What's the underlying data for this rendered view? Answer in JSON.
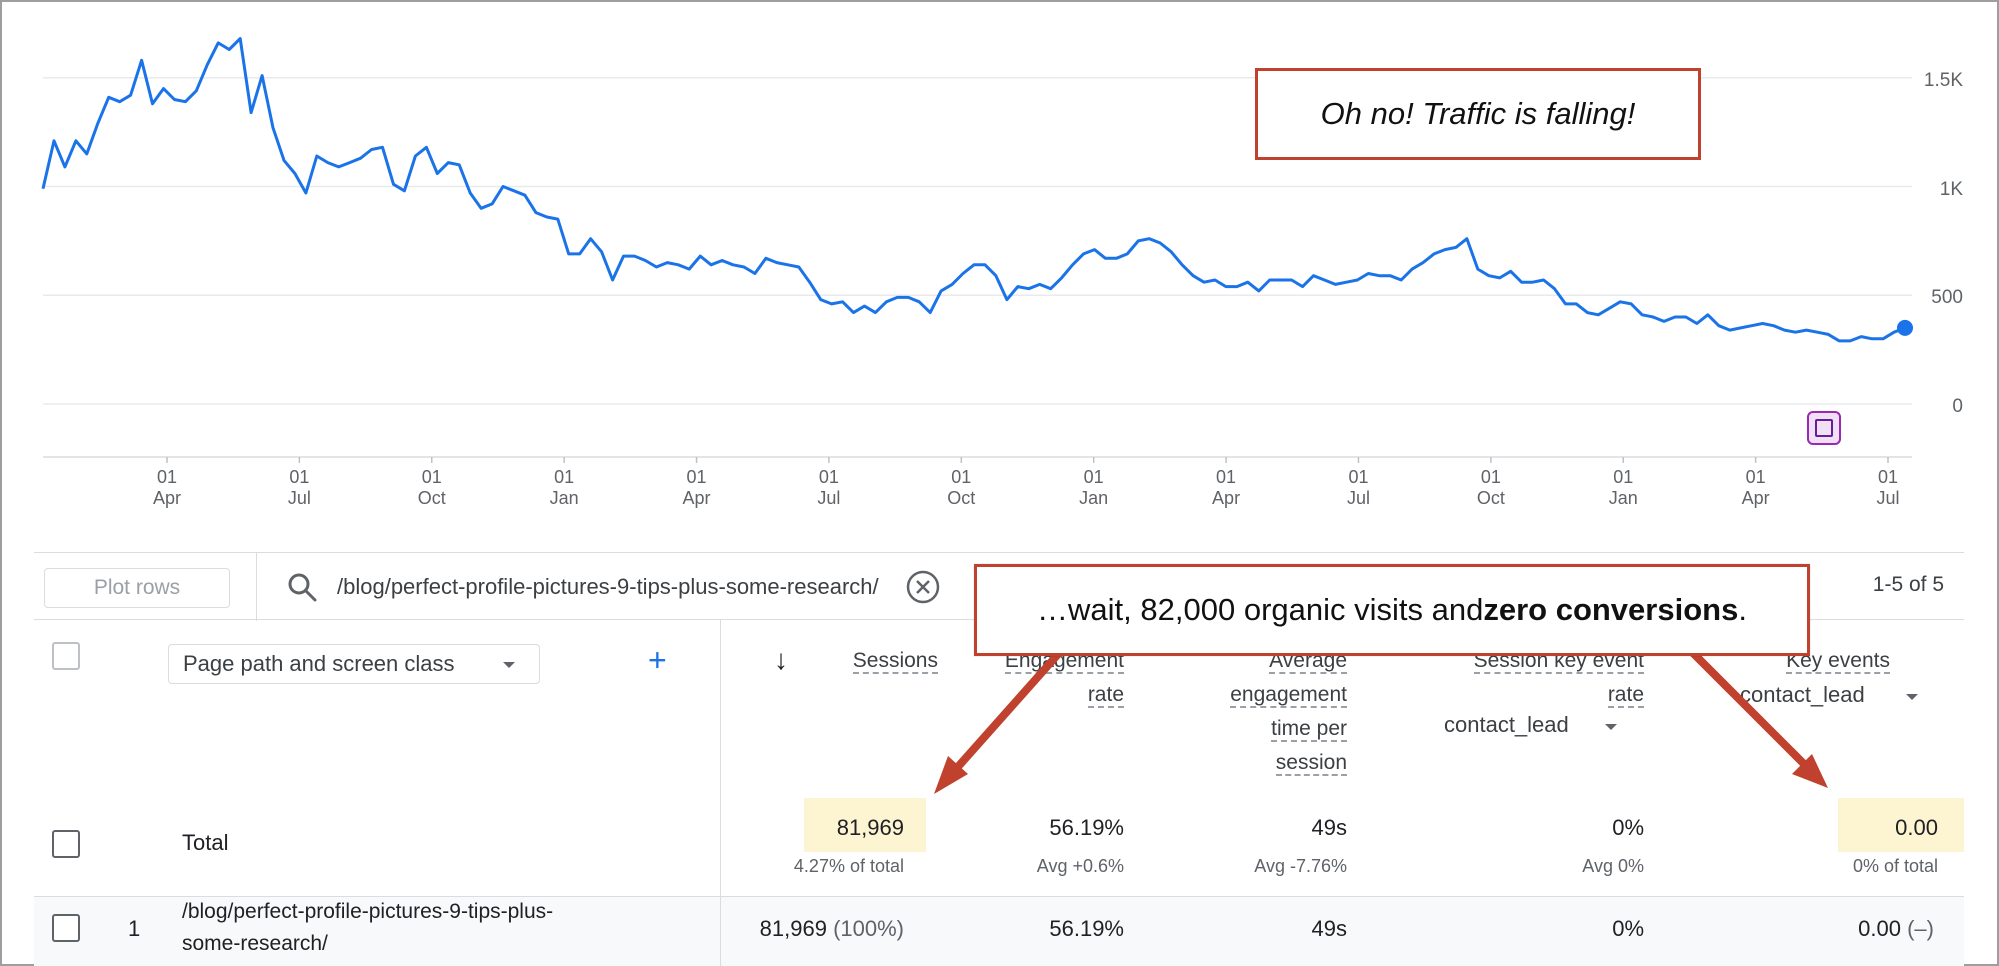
{
  "chart_data": {
    "type": "line",
    "y_ticks": [
      "1.5K",
      "1K",
      "500",
      "0"
    ],
    "ylim": [
      0,
      1600
    ],
    "x_ticks": [
      {
        "day": "01",
        "month": "Apr"
      },
      {
        "day": "01",
        "month": "Jul"
      },
      {
        "day": "01",
        "month": "Oct"
      },
      {
        "day": "01",
        "month": "Jan"
      },
      {
        "day": "01",
        "month": "Apr"
      },
      {
        "day": "01",
        "month": "Jul"
      },
      {
        "day": "01",
        "month": "Oct"
      },
      {
        "day": "01",
        "month": "Jan"
      },
      {
        "day": "01",
        "month": "Apr"
      },
      {
        "day": "01",
        "month": "Jul"
      },
      {
        "day": "01",
        "month": "Oct"
      },
      {
        "day": "01",
        "month": "Jan"
      },
      {
        "day": "01",
        "month": "Apr"
      },
      {
        "day": "01",
        "month": "Jul"
      }
    ],
    "series": [
      {
        "color": "#1a73e8",
        "values": [
          990,
          1210,
          1090,
          1210,
          1150,
          1290,
          1410,
          1390,
          1420,
          1580,
          1380,
          1450,
          1400,
          1390,
          1440,
          1560,
          1660,
          1630,
          1680,
          1340,
          1510,
          1270,
          1120,
          1060,
          970,
          1140,
          1110,
          1090,
          1110,
          1130,
          1170,
          1180,
          1010,
          980,
          1140,
          1180,
          1060,
          1110,
          1100,
          970,
          900,
          920,
          1000,
          980,
          960,
          880,
          860,
          850,
          690,
          690,
          760,
          700,
          570,
          680,
          680,
          660,
          630,
          650,
          640,
          620,
          680,
          640,
          660,
          640,
          630,
          600,
          670,
          650,
          640,
          630,
          560,
          480,
          460,
          470,
          420,
          450,
          420,
          470,
          490,
          490,
          470,
          420,
          520,
          550,
          600,
          640,
          640,
          590,
          480,
          540,
          530,
          550,
          530,
          580,
          640,
          690,
          710,
          670,
          670,
          690,
          750,
          760,
          740,
          700,
          640,
          590,
          560,
          570,
          540,
          540,
          560,
          520,
          570,
          570,
          570,
          540,
          590,
          570,
          550,
          560,
          570,
          600,
          590,
          590,
          570,
          620,
          650,
          690,
          710,
          720,
          760,
          620,
          590,
          580,
          610,
          560,
          560,
          570,
          530,
          460,
          460,
          420,
          410,
          440,
          470,
          460,
          410,
          400,
          380,
          400,
          400,
          370,
          410,
          360,
          340,
          350,
          360,
          370,
          360,
          340,
          330,
          340,
          330,
          320,
          290,
          290,
          310,
          300,
          300,
          330,
          350
        ],
        "last_point_marker": true
      }
    ]
  },
  "callouts": {
    "top": "Oh no! Traffic is falling!",
    "middle_prefix": "…wait, 82,000 organic visits and ",
    "middle_bold": "zero conversions",
    "middle_suffix": "."
  },
  "toolbar": {
    "plot_rows_label": "Plot rows",
    "search_value": "/blog/perfect-profile-pictures-9-tips-plus-some-research/",
    "pagination": "1-5 of 5"
  },
  "table": {
    "dimension_label": "Page path and screen class",
    "columns": {
      "sessions": "Sessions",
      "engagement_rate_1": "Engagement",
      "engagement_rate_2": "rate",
      "avg_time_1": "Average",
      "avg_time_2": "engagement",
      "avg_time_3": "time per",
      "avg_time_4": "session",
      "key_rate_1": "Session key event",
      "key_rate_2": "rate",
      "key_rate_select": "contact_lead",
      "key_events_1": "Key events",
      "key_events_select": "contact_lead"
    },
    "total": {
      "label": "Total",
      "sessions": "81,969",
      "sessions_sub": "4.27% of total",
      "engagement_rate": "56.19%",
      "engagement_rate_sub": "Avg +0.6%",
      "avg_time": "49s",
      "avg_time_sub": "Avg -7.76%",
      "key_rate": "0%",
      "key_rate_sub": "Avg 0%",
      "key_events": "0.00",
      "key_events_sub": "0% of total"
    },
    "rows": [
      {
        "num": "1",
        "path_1": "/blog/perfect-profile-pictures-9-tips-plus-",
        "path_2": "some-research/",
        "sessions": "81,969",
        "sessions_pct": "(100%)",
        "engagement_rate": "56.19%",
        "avg_time": "49s",
        "key_rate": "0%",
        "key_events": "0.00",
        "key_events_delta": "(–)"
      }
    ]
  }
}
